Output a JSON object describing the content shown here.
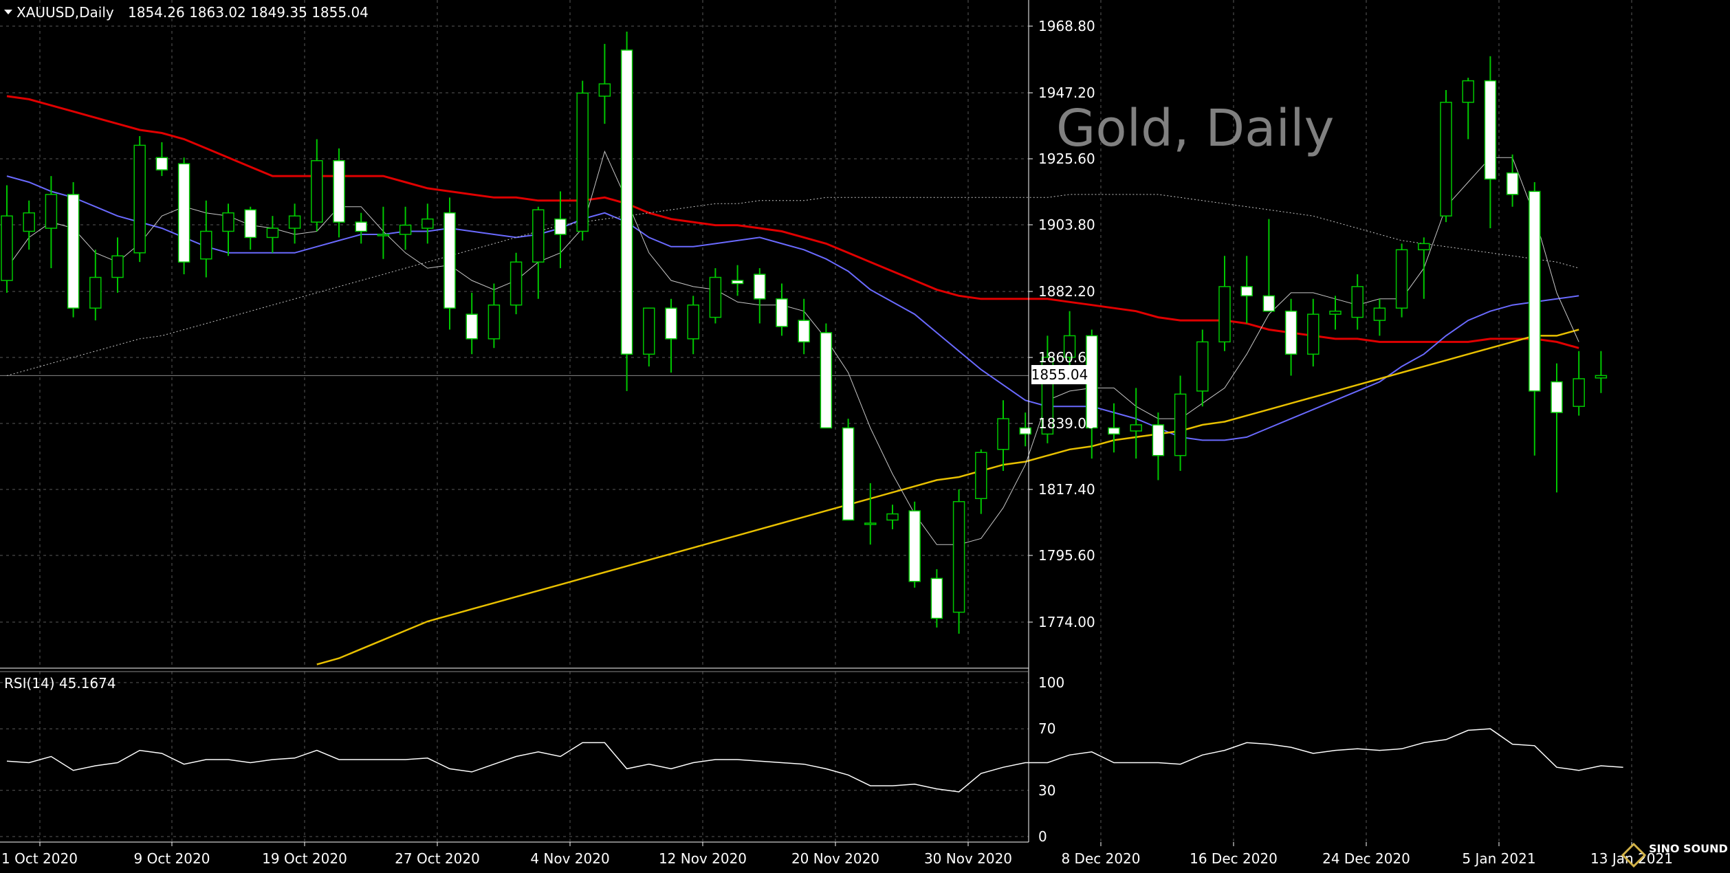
{
  "header": {
    "symbol": "XAUUSD,Daily",
    "ohlc": "1854.26 1863.02 1849.35 1855.04",
    "watermark": "Gold, Daily"
  },
  "price_tag": "1855.04",
  "rsi_header": "RSI(14) 45.1674",
  "logo_text": "SINO SOUND",
  "colors": {
    "background": "#000000",
    "grid": "#5a5a5a",
    "candle_up": "#000000",
    "candle_down": "#ffffff",
    "wick": "#00c800",
    "ma_red": "#e00000",
    "ma_blue": "#6a6aff",
    "ma_yellow": "#e8c000",
    "ma_thin": "#c8c8c8",
    "ma_dotted": "#c8c8c8",
    "rsi_line": "#ffffff"
  },
  "chart_data": [
    {
      "type": "candlestick",
      "title": "XAUUSD,Daily",
      "yticks": [
        "1968.80",
        "1947.20",
        "1925.60",
        "1903.80",
        "1882.20",
        "1860.60",
        "1839.00",
        "1817.40",
        "1795.60",
        "1774.00"
      ],
      "ylim": [
        1765,
        1975
      ],
      "xticks": [
        "1 Oct 2020",
        "9 Oct 2020",
        "19 Oct 2020",
        "27 Oct 2020",
        "4 Nov 2020",
        "12 Nov 2020",
        "20 Nov 2020",
        "30 Nov 2020",
        "8 Dec 2020",
        "16 Dec 2020",
        "24 Dec 2020",
        "5 Jan 2021",
        "13 Jan 2021"
      ],
      "candles": [
        {
          "o": 1886,
          "h": 1917,
          "l": 1882,
          "c": 1907
        },
        {
          "o": 1902,
          "h": 1912,
          "l": 1896,
          "c": 1908
        },
        {
          "o": 1903,
          "h": 1920,
          "l": 1890,
          "c": 1914
        },
        {
          "o": 1914,
          "h": 1918,
          "l": 1874,
          "c": 1877
        },
        {
          "o": 1877,
          "h": 1896,
          "l": 1873,
          "c": 1887
        },
        {
          "o": 1887,
          "h": 1900,
          "l": 1882,
          "c": 1894
        },
        {
          "o": 1895,
          "h": 1933,
          "l": 1892,
          "c": 1930
        },
        {
          "o": 1926,
          "h": 1931,
          "l": 1920,
          "c": 1922
        },
        {
          "o": 1924,
          "h": 1926,
          "l": 1888,
          "c": 1892
        },
        {
          "o": 1893,
          "h": 1912,
          "l": 1887,
          "c": 1902
        },
        {
          "o": 1902,
          "h": 1911,
          "l": 1894,
          "c": 1908
        },
        {
          "o": 1909,
          "h": 1910,
          "l": 1896,
          "c": 1900
        },
        {
          "o": 1900,
          "h": 1907,
          "l": 1895,
          "c": 1903
        },
        {
          "o": 1903,
          "h": 1911,
          "l": 1898,
          "c": 1907
        },
        {
          "o": 1905,
          "h": 1932,
          "l": 1902,
          "c": 1925
        },
        {
          "o": 1925,
          "h": 1929,
          "l": 1900,
          "c": 1905
        },
        {
          "o": 1905,
          "h": 1908,
          "l": 1898,
          "c": 1902
        },
        {
          "o": 1901,
          "h": 1910,
          "l": 1893,
          "c": 1901
        },
        {
          "o": 1901,
          "h": 1910,
          "l": 1896,
          "c": 1904
        },
        {
          "o": 1903,
          "h": 1911,
          "l": 1898,
          "c": 1906
        },
        {
          "o": 1908,
          "h": 1913,
          "l": 1870,
          "c": 1877
        },
        {
          "o": 1875,
          "h": 1882,
          "l": 1862,
          "c": 1867
        },
        {
          "o": 1867,
          "h": 1885,
          "l": 1864,
          "c": 1878
        },
        {
          "o": 1878,
          "h": 1895,
          "l": 1875,
          "c": 1892
        },
        {
          "o": 1892,
          "h": 1910,
          "l": 1880,
          "c": 1909
        },
        {
          "o": 1906,
          "h": 1915,
          "l": 1890,
          "c": 1901
        },
        {
          "o": 1902,
          "h": 1951,
          "l": 1899,
          "c": 1947
        },
        {
          "o": 1946,
          "h": 1963,
          "l": 1937,
          "c": 1950
        },
        {
          "o": 1961,
          "h": 1967,
          "l": 1850,
          "c": 1862
        },
        {
          "o": 1862,
          "h": 1877,
          "l": 1858,
          "c": 1877
        },
        {
          "o": 1877,
          "h": 1880,
          "l": 1856,
          "c": 1867
        },
        {
          "o": 1867,
          "h": 1881,
          "l": 1862,
          "c": 1878
        },
        {
          "o": 1874,
          "h": 1890,
          "l": 1872,
          "c": 1887
        },
        {
          "o": 1886,
          "h": 1891,
          "l": 1881,
          "c": 1885
        },
        {
          "o": 1888,
          "h": 1890,
          "l": 1872,
          "c": 1880
        },
        {
          "o": 1880,
          "h": 1885,
          "l": 1868,
          "c": 1871
        },
        {
          "o": 1873,
          "h": 1880,
          "l": 1862,
          "c": 1866
        },
        {
          "o": 1869,
          "h": 1872,
          "l": 1840,
          "c": 1838
        },
        {
          "o": 1838,
          "h": 1841,
          "l": 1808,
          "c": 1808
        },
        {
          "o": 1807,
          "h": 1820,
          "l": 1800,
          "c": 1807
        },
        {
          "o": 1808,
          "h": 1813,
          "l": 1805,
          "c": 1810
        },
        {
          "o": 1811,
          "h": 1814,
          "l": 1786,
          "c": 1788
        },
        {
          "o": 1789,
          "h": 1792,
          "l": 1773,
          "c": 1776
        },
        {
          "o": 1778,
          "h": 1818,
          "l": 1771,
          "c": 1814
        },
        {
          "o": 1815,
          "h": 1831,
          "l": 1810,
          "c": 1830
        },
        {
          "o": 1831,
          "h": 1847,
          "l": 1824,
          "c": 1841
        },
        {
          "o": 1838,
          "h": 1843,
          "l": 1832,
          "c": 1836
        },
        {
          "o": 1836,
          "h": 1868,
          "l": 1833,
          "c": 1861
        },
        {
          "o": 1861,
          "h": 1876,
          "l": 1858,
          "c": 1868
        },
        {
          "o": 1868,
          "h": 1870,
          "l": 1828,
          "c": 1838
        },
        {
          "o": 1838,
          "h": 1846,
          "l": 1830,
          "c": 1836
        },
        {
          "o": 1837,
          "h": 1851,
          "l": 1828,
          "c": 1839
        },
        {
          "o": 1839,
          "h": 1843,
          "l": 1821,
          "c": 1829
        },
        {
          "o": 1829,
          "h": 1855,
          "l": 1824,
          "c": 1849
        },
        {
          "o": 1850,
          "h": 1870,
          "l": 1845,
          "c": 1866
        },
        {
          "o": 1866,
          "h": 1894,
          "l": 1863,
          "c": 1884
        },
        {
          "o": 1884,
          "h": 1894,
          "l": 1872,
          "c": 1881
        },
        {
          "o": 1881,
          "h": 1906,
          "l": 1878,
          "c": 1876
        },
        {
          "o": 1876,
          "h": 1880,
          "l": 1855,
          "c": 1862
        },
        {
          "o": 1862,
          "h": 1880,
          "l": 1858,
          "c": 1875
        },
        {
          "o": 1875,
          "h": 1881,
          "l": 1870,
          "c": 1876
        },
        {
          "o": 1874,
          "h": 1888,
          "l": 1870,
          "c": 1884
        },
        {
          "o": 1873,
          "h": 1880,
          "l": 1868,
          "c": 1877
        },
        {
          "o": 1877,
          "h": 1898,
          "l": 1874,
          "c": 1896
        },
        {
          "o": 1896,
          "h": 1900,
          "l": 1880,
          "c": 1898
        },
        {
          "o": 1907,
          "h": 1948,
          "l": 1905,
          "c": 1944
        },
        {
          "o": 1944,
          "h": 1952,
          "l": 1932,
          "c": 1951
        },
        {
          "o": 1951,
          "h": 1959,
          "l": 1903,
          "c": 1919
        },
        {
          "o": 1921,
          "h": 1927,
          "l": 1910,
          "c": 1914
        },
        {
          "o": 1915,
          "h": 1918,
          "l": 1829,
          "c": 1850
        },
        {
          "o": 1853,
          "h": 1859,
          "l": 1817,
          "c": 1843
        },
        {
          "o": 1845,
          "h": 1863,
          "l": 1842,
          "c": 1854
        },
        {
          "o": 1854.26,
          "h": 1863.02,
          "l": 1849.35,
          "c": 1855.04
        }
      ],
      "series": [
        {
          "values": [
            1946,
            1945,
            1943,
            1941,
            1939,
            1937,
            1935,
            1934,
            1932,
            1929,
            1926,
            1923,
            1920,
            1920,
            1920,
            1920,
            1920,
            1920,
            1918,
            1916,
            1915,
            1914,
            1913,
            1913,
            1912,
            1912,
            1912,
            1913,
            1911,
            1908,
            1906,
            1905,
            1904,
            1904,
            1903,
            1902,
            1900,
            1898,
            1895,
            1892,
            1889,
            1886,
            1883,
            1881,
            1880,
            1880,
            1880,
            1880,
            1879,
            1878,
            1877,
            1876,
            1874,
            1873,
            1873,
            1873,
            1872,
            1870,
            1869,
            1868,
            1867,
            1867,
            1866,
            1866,
            1866,
            1866,
            1866,
            1867,
            1867,
            1867,
            1866,
            1864
          ]
        },
        {
          "values": [
            1920,
            1918,
            1915,
            1913,
            1910,
            1907,
            1905,
            1903,
            1900,
            1897,
            1895,
            1895,
            1895,
            1895,
            1897,
            1899,
            1901,
            1901,
            1902,
            1902,
            1903,
            1902,
            1901,
            1900,
            1901,
            1903,
            1906,
            1908,
            1905,
            1900,
            1897,
            1897,
            1898,
            1899,
            1900,
            1898,
            1896,
            1893,
            1889,
            1883,
            1879,
            1875,
            1869,
            1863,
            1857,
            1852,
            1847,
            1845,
            1845,
            1845,
            1843,
            1841,
            1838,
            1835,
            1834,
            1834,
            1835,
            1838,
            1841,
            1844,
            1847,
            1850,
            1853,
            1858,
            1862,
            1868,
            1873,
            1876,
            1878,
            1879,
            1880,
            1881
          ]
        },
        {
          "values": [
            null,
            null,
            null,
            null,
            null,
            null,
            null,
            null,
            null,
            null,
            null,
            null,
            null,
            null,
            1761,
            1763,
            1766,
            1769,
            1772,
            1775,
            1777,
            1779,
            1781,
            1783,
            1785,
            1787,
            1789,
            1791,
            1793,
            1795,
            1797,
            1799,
            1801,
            1803,
            1805,
            1807,
            1809,
            1811,
            1813,
            1815,
            1817,
            1819,
            1821,
            1822,
            1824,
            1826,
            1827,
            1829,
            1831,
            1832,
            1834,
            1835,
            1836,
            1837,
            1839,
            1840,
            1842,
            1844,
            1846,
            1848,
            1850,
            1852,
            1854,
            1856,
            1858,
            1860,
            1862,
            1864,
            1866,
            1868,
            1868,
            1870
          ]
        },
        {
          "values": [
            1890,
            1900,
            1905,
            1903,
            1895,
            1892,
            1898,
            1907,
            1910,
            1908,
            1907,
            1904,
            1903,
            1901,
            1902,
            1910,
            1910,
            1902,
            1895,
            1890,
            1891,
            1886,
            1883,
            1886,
            1892,
            1895,
            1903,
            1928,
            1912,
            1895,
            1886,
            1884,
            1883,
            1879,
            1878,
            1878,
            1876,
            1867,
            1856,
            1838,
            1823,
            1810,
            1800,
            1800,
            1802,
            1812,
            1826,
            1847,
            1850,
            1851,
            1851,
            1845,
            1841,
            1841,
            1846,
            1851,
            1862,
            1875,
            1882,
            1882,
            1880,
            1878,
            1880,
            1880,
            1890,
            1910,
            1918,
            1926,
            1926,
            1907,
            1882,
            1866
          ]
        },
        {
          "values": [
            1855,
            1857,
            1859,
            1861,
            1863,
            1865,
            1867,
            1868,
            1870,
            1872,
            1874,
            1876,
            1878,
            1880,
            1882,
            1884,
            1886,
            1888,
            1890,
            1892,
            1894,
            1896,
            1898,
            1900,
            1902,
            1904,
            1905,
            1906,
            1907,
            1908,
            1909,
            1910,
            1911,
            1911,
            1912,
            1912,
            1912,
            1913,
            1913,
            1913,
            1913,
            1913,
            1913,
            1913,
            1913,
            1913,
            1913,
            1913,
            1914,
            1914,
            1914,
            1914,
            1914,
            1913,
            1912,
            1911,
            1910,
            1909,
            1908,
            1907,
            1905,
            1903,
            1901,
            1899,
            1898,
            1897,
            1896,
            1895,
            1894,
            1893,
            1892,
            1890
          ]
        }
      ]
    },
    {
      "type": "line",
      "title": "RSI(14) 45.1674",
      "yticks": [
        "100",
        "70",
        "30",
        "0"
      ],
      "ylim": [
        0,
        100
      ],
      "series": [
        {
          "values": [
            49,
            48,
            52,
            43,
            46,
            48,
            56,
            54,
            47,
            50,
            50,
            48,
            50,
            51,
            56,
            50,
            50,
            50,
            50,
            51,
            44,
            42,
            47,
            52,
            55,
            52,
            61,
            61,
            44,
            47,
            44,
            48,
            50,
            50,
            49,
            48,
            47,
            44,
            40,
            33,
            33,
            34,
            31,
            29,
            41,
            45,
            48,
            48,
            53,
            55,
            48,
            48,
            48,
            47,
            53,
            56,
            61,
            60,
            58,
            54,
            56,
            57,
            56,
            57,
            61,
            63,
            69,
            70,
            60,
            59,
            45,
            43,
            46,
            45
          ]
        }
      ]
    }
  ]
}
